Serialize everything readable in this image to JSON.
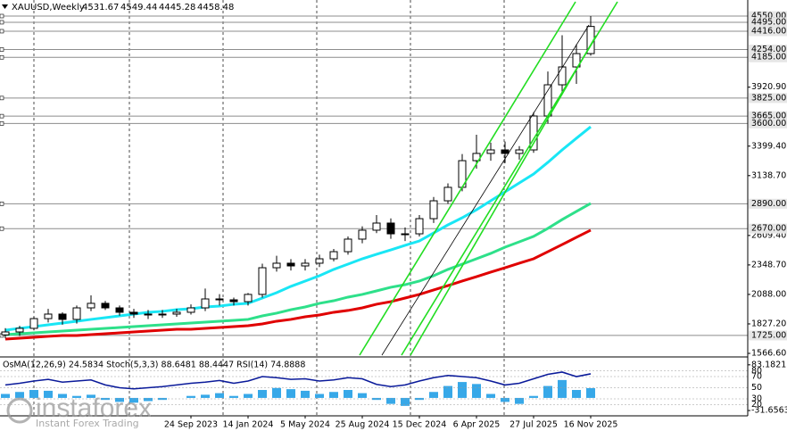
{
  "chart_data": {
    "type": "candlestick",
    "title": "XAUUSD,Weekly",
    "header_values": [
      4531.67,
      4549.44,
      4445.28,
      4458.48
    ],
    "categories": [
      null,
      null,
      null,
      null,
      null,
      null,
      null,
      null,
      null,
      null,
      null,
      null,
      null,
      "24 Sep 2023",
      null,
      null,
      null,
      "14 Jan 2024",
      null,
      null,
      null,
      "5 May 2024",
      null,
      null,
      null,
      "25 Aug 2024",
      null,
      null,
      null,
      "15 Dec 2024",
      null,
      null,
      null,
      "6 Apr 2025",
      null,
      null,
      null,
      "27 Jul 2025",
      null,
      null,
      null,
      "16 Nov 2025"
    ],
    "open": [
      1730,
      1756,
      1788,
      1874,
      1914,
      1867,
      1969,
      2009,
      1969,
      1930,
      1914,
      1914,
      1914,
      1930,
      1969,
      2048,
      2040,
      2024,
      2088,
      2324,
      2364,
      2340,
      2364,
      2403,
      2466,
      2577,
      2656,
      2719,
      2624,
      2624,
      2758,
      2916,
      3035,
      3271,
      3335,
      3366,
      3335,
      3366,
      3666,
      3942,
      4100,
      4218
    ],
    "high": [
      1790,
      1810,
      1890,
      1960,
      1930,
      1990,
      2080,
      2030,
      1990,
      1960,
      1950,
      1950,
      1960,
      2000,
      2140,
      2090,
      2060,
      2100,
      2360,
      2430,
      2400,
      2400,
      2440,
      2490,
      2600,
      2690,
      2790,
      2760,
      2680,
      2790,
      2950,
      3070,
      3330,
      3500,
      3430,
      3440,
      3400,
      3700,
      4060,
      4380,
      4300,
      4550
    ],
    "low": [
      1700,
      1720,
      1770,
      1840,
      1820,
      1830,
      1940,
      1950,
      1900,
      1880,
      1870,
      1880,
      1890,
      1910,
      1940,
      1990,
      1990,
      1990,
      2060,
      2290,
      2300,
      2300,
      2330,
      2380,
      2440,
      2540,
      2630,
      2580,
      2560,
      2600,
      2720,
      2890,
      3000,
      3200,
      3270,
      3250,
      3280,
      3340,
      3600,
      3880,
      3950,
      4200
    ],
    "close": [
      1756,
      1788,
      1874,
      1914,
      1867,
      1969,
      2009,
      1969,
      1930,
      1914,
      1914,
      1914,
      1930,
      1969,
      2048,
      2040,
      2024,
      2088,
      2324,
      2364,
      2340,
      2364,
      2403,
      2466,
      2577,
      2656,
      2719,
      2624,
      2624,
      2758,
      2916,
      3035,
      3271,
      3335,
      3366,
      3335,
      3366,
      3666,
      3942,
      4100,
      4218,
      4458
    ],
    "up_color": "#ffffff",
    "down_color": "#000000",
    "ylim": [
      1535,
      4692
    ],
    "yticks": [
      {
        "value": 1566.6,
        "label": "1566.60"
      },
      {
        "value": 1827.2,
        "label": "1827.20"
      },
      {
        "value": 2088,
        "label": "2088.00"
      },
      {
        "value": 2348.7,
        "label": "2348.70"
      },
      {
        "value": 2609.4,
        "label": "2609.40"
      },
      {
        "value": 3138.7,
        "label": "3138.70"
      },
      {
        "value": 3399.4,
        "label": "3399.40"
      },
      {
        "value": 3920.9,
        "label": "3920.90"
      }
    ],
    "levels": [
      {
        "value": 4550,
        "label": "4550.00"
      },
      {
        "value": 4495,
        "label": "4495.00"
      },
      {
        "value": 4416,
        "label": "4416.00"
      },
      {
        "value": 4254,
        "label": "4254.00"
      },
      {
        "value": 4185,
        "label": "4185.00"
      },
      {
        "value": 3825,
        "label": "3825.00"
      },
      {
        "value": 3665,
        "label": "3665.00"
      },
      {
        "value": 3600,
        "label": "3600.00"
      },
      {
        "value": 2890,
        "label": "2890.00"
      },
      {
        "value": 2670,
        "label": "2670.00"
      },
      {
        "value": 1725,
        "label": "1725.00"
      }
    ],
    "level_color": "#8c8c8c",
    "moving_averages": [
      {
        "color": "#19e6f5",
        "values": [
          1772,
          1788,
          1803,
          1819,
          1835,
          1851,
          1867,
          1882,
          1898,
          1914,
          1930,
          1938,
          1953,
          1961,
          1977,
          1985,
          2001,
          2009,
          2056,
          2103,
          2159,
          2206,
          2253,
          2309,
          2356,
          2403,
          2443,
          2482,
          2522,
          2561,
          2632,
          2703,
          2766,
          2837,
          2916,
          2995,
          3074,
          3153,
          3256,
          3366,
          3469,
          3571
        ]
      },
      {
        "color": "#2ee08a",
        "values": [
          1732,
          1740,
          1748,
          1756,
          1764,
          1772,
          1780,
          1788,
          1795,
          1803,
          1811,
          1819,
          1827,
          1835,
          1843,
          1851,
          1859,
          1867,
          1898,
          1922,
          1953,
          1977,
          2009,
          2032,
          2064,
          2088,
          2119,
          2151,
          2174,
          2206,
          2253,
          2309,
          2356,
          2403,
          2451,
          2506,
          2553,
          2601,
          2672,
          2750,
          2822,
          2893
        ]
      },
      {
        "color": "#e00000",
        "values": [
          1693,
          1701,
          1709,
          1717,
          1724,
          1724,
          1732,
          1740,
          1748,
          1756,
          1764,
          1772,
          1780,
          1780,
          1788,
          1795,
          1803,
          1811,
          1827,
          1851,
          1867,
          1890,
          1906,
          1930,
          1946,
          1969,
          2001,
          2024,
          2056,
          2088,
          2127,
          2166,
          2206,
          2245,
          2285,
          2324,
          2364,
          2403,
          2466,
          2529,
          2593,
          2656
        ]
      }
    ],
    "indicator": {
      "title": "OsMA(12,26,9) 24.5834 Stoch(5,3,3) 88.6481 88.4447 RSI(14) 74.8888",
      "osma": {
        "color": "#37a8e8",
        "ylim": [
          -45,
          103
        ],
        "yticks": [
          83.1821,
          -31.6563
        ],
        "values": [
          10,
          15,
          20,
          18,
          10,
          5,
          8,
          -5,
          -10,
          -12,
          -8,
          -5,
          0,
          5,
          8,
          12,
          5,
          10,
          20,
          25,
          22,
          18,
          10,
          15,
          20,
          12,
          -5,
          -15,
          -20,
          -5,
          15,
          30,
          40,
          35,
          10,
          -10,
          -15,
          5,
          30,
          45,
          20,
          24.5834
        ]
      },
      "rsi": {
        "color": "#0a1a9a",
        "ylim": [
          -0.4,
          105.2
        ],
        "yticks": [
          80,
          70,
          50,
          30,
          20
        ],
        "values": [
          55,
          58,
          62,
          65,
          60,
          62,
          64,
          55,
          50,
          48,
          50,
          52,
          55,
          58,
          60,
          63,
          58,
          62,
          70,
          68,
          65,
          66,
          62,
          64,
          68,
          66,
          56,
          52,
          55,
          62,
          68,
          72,
          70,
          68,
          62,
          55,
          58,
          66,
          74,
          78,
          70,
          74.8888
        ]
      }
    }
  },
  "watermark": {
    "brand": "instaforex",
    "tagline": "Instant Forex Trading"
  }
}
